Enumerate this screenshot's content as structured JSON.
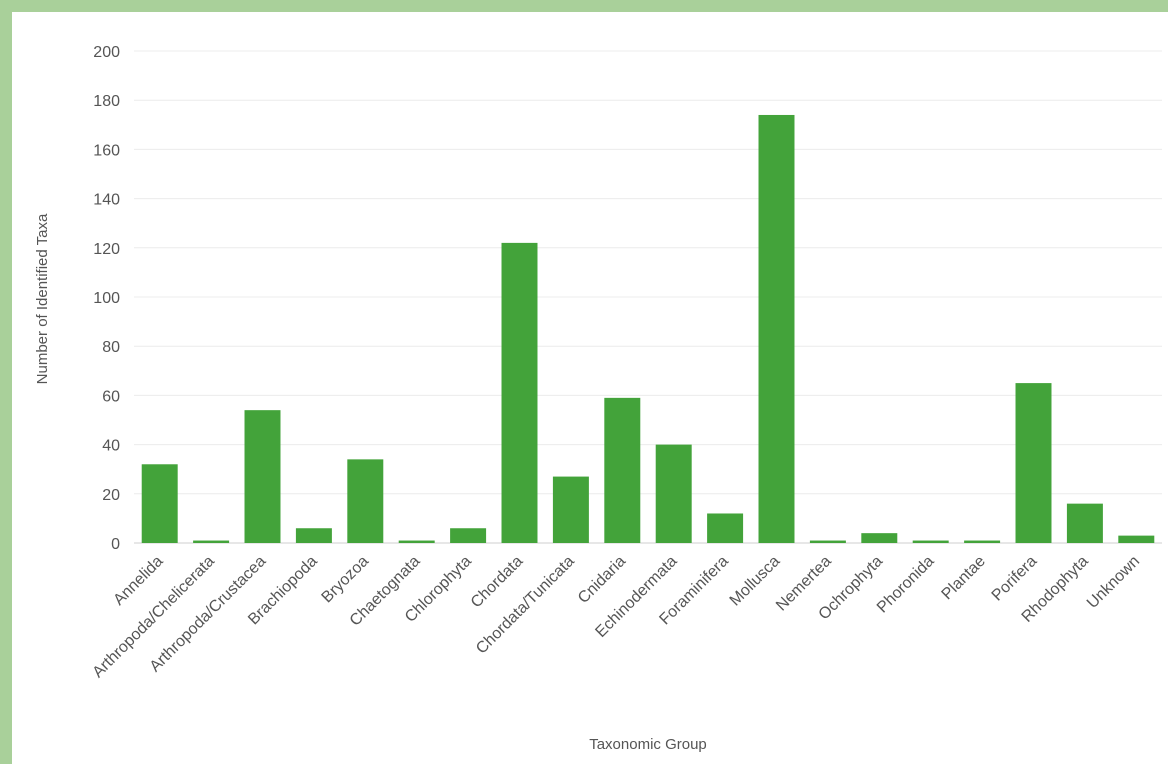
{
  "chart_data": {
    "type": "bar",
    "xlabel": "Taxonomic Group",
    "ylabel": "Number of Identified Taxa",
    "ylim": [
      0,
      200
    ],
    "yticks": [
      0,
      20,
      40,
      60,
      80,
      100,
      120,
      140,
      160,
      180,
      200
    ],
    "grid": true,
    "bar_color": "#43a33a",
    "categories": [
      "Annelida",
      "Arthropoda/Chelicerata",
      "Arthropoda/Crustacea",
      "Brachiopoda",
      "Bryozoa",
      "Chaetognata",
      "Chlorophyta",
      "Chordata",
      "Chordata/Tunicata",
      "Cnidaria",
      "Echinodermata",
      "Foraminifera",
      "Mollusca",
      "Nemertea",
      "Ochrophyta",
      "Phoronida",
      "Plantae",
      "Porifera",
      "Rhodophyta",
      "Unknown"
    ],
    "values": [
      32,
      1,
      54,
      6,
      34,
      1,
      6,
      122,
      27,
      59,
      40,
      12,
      174,
      1,
      4,
      1,
      1,
      65,
      16,
      3
    ]
  }
}
